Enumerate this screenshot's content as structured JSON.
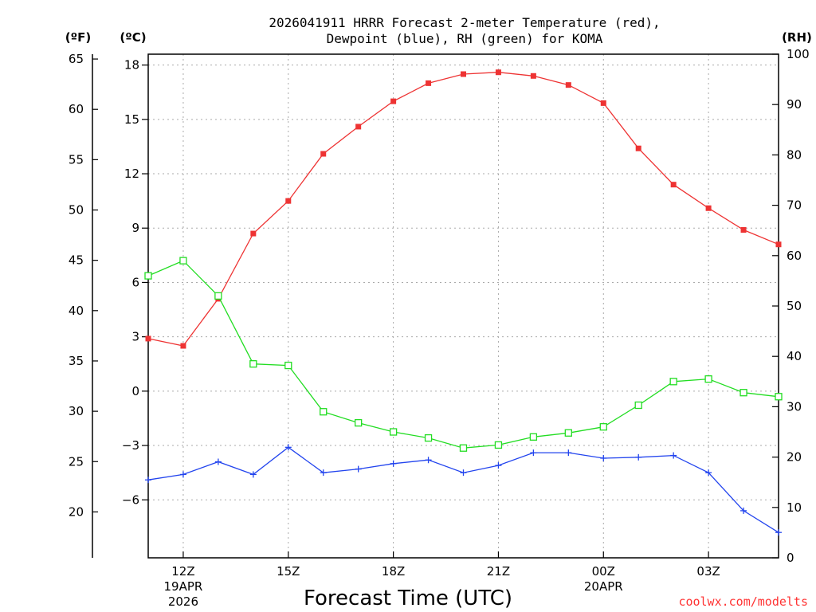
{
  "chart_data": {
    "type": "line",
    "title_line1": "2026041911 HRRR Forecast 2-meter Temperature (red),",
    "title_line2": "Dewpoint (blue), RH (green) for KOMA",
    "xlabel": "Forecast Time (UTC)",
    "credit": "coolwx.com/modelts",
    "unit_f": "(ºF)",
    "unit_c": "(ºC)",
    "unit_rh": "(RH)",
    "x_hours": [
      11,
      12,
      13,
      14,
      15,
      16,
      17,
      18,
      19,
      20,
      21,
      22,
      23,
      24,
      25,
      26,
      27,
      28,
      29
    ],
    "x_range": [
      11,
      29
    ],
    "x_ticks": [
      {
        "x": 12,
        "line1": "12Z",
        "line2": "19APR",
        "line3": "2026"
      },
      {
        "x": 15,
        "line1": "15Z",
        "line2": "",
        "line3": ""
      },
      {
        "x": 18,
        "line1": "18Z",
        "line2": "",
        "line3": ""
      },
      {
        "x": 21,
        "line1": "21Z",
        "line2": "",
        "line3": ""
      },
      {
        "x": 24,
        "line1": "00Z",
        "line2": "20APR",
        "line3": ""
      },
      {
        "x": 27,
        "line1": "03Z",
        "line2": "",
        "line3": ""
      }
    ],
    "c_range": [
      -9.2,
      18.6
    ],
    "c_ticks": [
      "18",
      "15",
      "12",
      "9",
      "6",
      "3",
      "0",
      "−3",
      "−6"
    ],
    "c_tick_values": [
      18,
      15,
      12,
      9,
      6,
      3,
      0,
      -3,
      -6
    ],
    "f_ticks": [
      "65",
      "60",
      "55",
      "50",
      "45",
      "40",
      "35",
      "30",
      "25",
      "20"
    ],
    "f_tick_values": [
      65,
      60,
      55,
      50,
      45,
      40,
      35,
      30,
      25,
      20
    ],
    "rh_range": [
      0,
      100
    ],
    "rh_ticks": [
      "100",
      "90",
      "80",
      "70",
      "60",
      "50",
      "40",
      "30",
      "20",
      "10",
      "0"
    ],
    "rh_tick_values": [
      100,
      90,
      80,
      70,
      60,
      50,
      40,
      30,
      20,
      10,
      0
    ],
    "series": [
      {
        "name": "Temperature",
        "color": "#ee3333",
        "marker": "filled-square",
        "values": [
          2.9,
          2.5,
          5.1,
          8.7,
          10.5,
          13.1,
          14.6,
          16.0,
          17.0,
          17.5,
          17.6,
          17.4,
          16.9,
          15.9,
          13.4,
          11.4,
          10.1,
          8.9,
          8.1
        ]
      },
      {
        "name": "Dewpoint",
        "color": "#2244ee",
        "marker": "plus",
        "values": [
          -4.9,
          -4.6,
          -3.9,
          -4.6,
          -3.1,
          -4.5,
          -4.3,
          -4.0,
          -3.8,
          -4.5,
          -4.1,
          -3.4,
          -3.4,
          -3.7,
          -3.65,
          -3.55,
          -4.5,
          -6.6,
          -7.8
        ]
      },
      {
        "name": "RH",
        "color": "#22dd22",
        "marker": "open-square",
        "values": [
          56,
          59,
          52,
          38.5,
          38.2,
          29,
          26.8,
          25,
          23.8,
          21.8,
          22.4,
          24,
          24.8,
          26,
          30.3,
          35,
          35.5,
          32.8,
          32
        ]
      }
    ]
  }
}
